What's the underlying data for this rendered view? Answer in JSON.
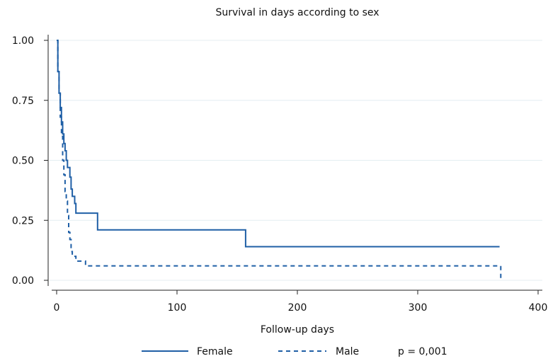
{
  "chart_data": {
    "type": "line",
    "title": "Survival in days according to sex",
    "xlabel": "Follow-up days",
    "ylabel": "",
    "xlim": [
      0,
      400
    ],
    "ylim": [
      0,
      1
    ],
    "x_ticks": [
      0,
      100,
      200,
      300,
      400
    ],
    "x_tick_labels": [
      "0",
      "100",
      "200",
      "300",
      "400"
    ],
    "y_ticks": [
      0,
      0.25,
      0.5,
      0.75,
      1
    ],
    "y_tick_labels": [
      "0.00",
      "0.25",
      "0.50",
      "0.75",
      "1.00"
    ],
    "grid": true,
    "legend_position": "bottom",
    "annotation": "p = 0,001",
    "series": [
      {
        "name": "Female",
        "style": "solid",
        "color": "#1f5fa6",
        "step_points": [
          [
            0,
            1.0
          ],
          [
            1,
            0.87
          ],
          [
            2,
            0.78
          ],
          [
            3,
            0.72
          ],
          [
            4,
            0.66
          ],
          [
            5,
            0.61
          ],
          [
            6,
            0.57
          ],
          [
            7,
            0.54
          ],
          [
            8,
            0.5
          ],
          [
            9,
            0.47
          ],
          [
            11,
            0.43
          ],
          [
            12,
            0.38
          ],
          [
            13,
            0.35
          ],
          [
            15,
            0.32
          ],
          [
            16,
            0.28
          ],
          [
            34,
            0.21
          ],
          [
            157,
            0.14
          ],
          [
            368,
            0.14
          ]
        ]
      },
      {
        "name": "Male",
        "style": "dashed",
        "color": "#1f5fa6",
        "step_points": [
          [
            0,
            1.0
          ],
          [
            1,
            0.87
          ],
          [
            2,
            0.78
          ],
          [
            3,
            0.68
          ],
          [
            4,
            0.6
          ],
          [
            5,
            0.5
          ],
          [
            6,
            0.44
          ],
          [
            7,
            0.37
          ],
          [
            8,
            0.33
          ],
          [
            9,
            0.27
          ],
          [
            10,
            0.2
          ],
          [
            11,
            0.17
          ],
          [
            12,
            0.12
          ],
          [
            13,
            0.1
          ],
          [
            16,
            0.08
          ],
          [
            24,
            0.06
          ],
          [
            369,
            0.06
          ],
          [
            369,
            0.0
          ]
        ]
      }
    ]
  }
}
